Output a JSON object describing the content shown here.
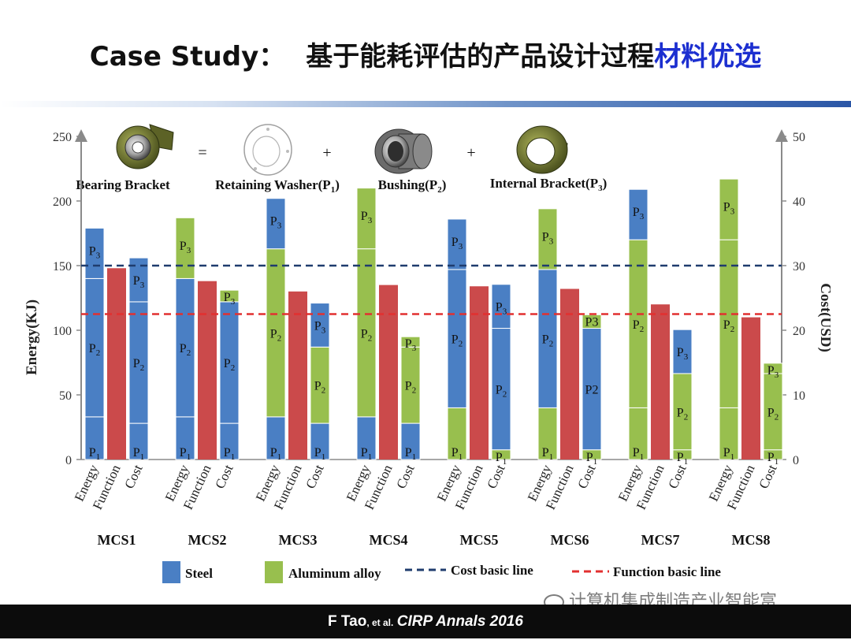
{
  "slide": {
    "title_prefix": "Case Study：",
    "title_main": "基于能耗评估的产品设计过程",
    "title_highlight": "材料优选",
    "footer_author": "F Tao",
    "footer_etal": ", et al.",
    "footer_journal": "CIRP Annals 2016",
    "watermark": "计算机集成制造产业智能富"
  },
  "colors": {
    "steel": "#4a7fc4",
    "aluminum": "#98bf4e",
    "function": "#cb4a4b",
    "cost_line": "#1f3c6e",
    "function_line": "#e23030",
    "title_highlight": "#1c2fd0"
  },
  "chart_data": {
    "type": "bar",
    "subtype": "stacked",
    "categories": [
      "MCS1",
      "MCS2",
      "MCS3",
      "MCS4",
      "MCS5",
      "MCS6",
      "MCS7",
      "MCS8"
    ],
    "bar_labels": [
      "Energy",
      "Function",
      "Cost"
    ],
    "y_left": {
      "label": "Energy(KJ)",
      "range": [
        0,
        250
      ],
      "ticks": [
        0,
        50,
        100,
        150,
        200,
        250
      ]
    },
    "y_right": {
      "label": "Cost(USD)",
      "range": [
        0,
        50
      ],
      "ticks": [
        0,
        10,
        20,
        30,
        40,
        50
      ]
    },
    "cost_basic_line": 30,
    "function_basic_line": 22.5,
    "legend": {
      "steel": "Steel",
      "aluminum": "Aluminum  alloy",
      "cost_line": "Cost  basic line",
      "function_line": "Function  basic line"
    },
    "part_labels": {
      "P1": [
        "P",
        "1"
      ],
      "P2": [
        "P",
        "2"
      ],
      "P3": [
        "P",
        "3"
      ],
      "P2_plain": "P2",
      "P3_plain": "P3"
    },
    "diagram": {
      "bearing": "Bearing Bracket",
      "eq": "=",
      "washer": "Retaining Washer(P",
      "washer_sub": "1",
      "plus1": "+",
      "bushing": "Bushing(P",
      "bushing_sub": "2",
      "plus2": "+",
      "internal": "Internal  Bracket(P",
      "internal_sub": "3",
      "close": ")"
    },
    "groups": [
      {
        "name": "MCS1",
        "energy": [
          {
            "part": "P1",
            "value": 33,
            "material": "steel"
          },
          {
            "part": "P2",
            "value": 107,
            "material": "steel"
          },
          {
            "part": "P3",
            "value": 39,
            "material": "steel"
          }
        ],
        "function": 148,
        "cost": [
          {
            "part": "P1",
            "value": 5.6,
            "material": "steel"
          },
          {
            "part": "P2",
            "value": 18.8,
            "material": "steel"
          },
          {
            "part": "P3",
            "value": 6.8,
            "material": "steel"
          }
        ]
      },
      {
        "name": "MCS2",
        "energy": [
          {
            "part": "P1",
            "value": 33,
            "material": "steel"
          },
          {
            "part": "P2",
            "value": 107,
            "material": "steel"
          },
          {
            "part": "P3",
            "value": 47,
            "material": "aluminum"
          }
        ],
        "function": 138,
        "cost": [
          {
            "part": "P1",
            "value": 5.6,
            "material": "steel"
          },
          {
            "part": "P2",
            "value": 18.8,
            "material": "steel"
          },
          {
            "part": "P3",
            "value": 1.8,
            "material": "aluminum"
          }
        ]
      },
      {
        "name": "MCS3",
        "energy": [
          {
            "part": "P1",
            "value": 33,
            "material": "steel"
          },
          {
            "part": "P2",
            "value": 130,
            "material": "aluminum"
          },
          {
            "part": "P3",
            "value": 39,
            "material": "steel"
          }
        ],
        "function": 130,
        "cost": [
          {
            "part": "P1",
            "value": 5.6,
            "material": "steel"
          },
          {
            "part": "P2",
            "value": 11.8,
            "material": "aluminum"
          },
          {
            "part": "P3",
            "value": 6.8,
            "material": "steel"
          }
        ]
      },
      {
        "name": "MCS4",
        "energy": [
          {
            "part": "P1",
            "value": 33,
            "material": "steel"
          },
          {
            "part": "P2",
            "value": 130,
            "material": "aluminum"
          },
          {
            "part": "P3",
            "value": 47,
            "material": "aluminum"
          }
        ],
        "function": 135,
        "cost": [
          {
            "part": "P1",
            "value": 5.6,
            "material": "steel"
          },
          {
            "part": "P2",
            "value": 11.8,
            "material": "aluminum"
          },
          {
            "part": "P3",
            "value": 1.6,
            "material": "aluminum"
          }
        ]
      },
      {
        "name": "MCS5",
        "energy": [
          {
            "part": "P1",
            "value": 40,
            "material": "aluminum"
          },
          {
            "part": "P2",
            "value": 107,
            "material": "steel"
          },
          {
            "part": "P3",
            "value": 39,
            "material": "steel"
          }
        ],
        "function": 134,
        "cost": [
          {
            "part": "P1",
            "value": 1.5,
            "material": "aluminum"
          },
          {
            "part": "P2",
            "value": 18.8,
            "material": "steel"
          },
          {
            "part": "P3",
            "value": 6.8,
            "material": "steel"
          }
        ]
      },
      {
        "name": "MCS6",
        "energy": [
          {
            "part": "P1",
            "value": 40,
            "material": "aluminum"
          },
          {
            "part": "P2",
            "value": 107,
            "material": "steel"
          },
          {
            "part": "P3",
            "value": 47,
            "material": "aluminum"
          }
        ],
        "function": 132,
        "cost": [
          {
            "part": "P1",
            "value": 1.5,
            "material": "aluminum"
          },
          {
            "part": "P2",
            "value": 18.8,
            "material": "steel"
          },
          {
            "part": "P3",
            "value": 2.1,
            "material": "aluminum"
          }
        ]
      },
      {
        "name": "MCS7",
        "energy": [
          {
            "part": "P1",
            "value": 40,
            "material": "aluminum"
          },
          {
            "part": "P2",
            "value": 130,
            "material": "aluminum"
          },
          {
            "part": "P3",
            "value": 39,
            "material": "steel"
          }
        ],
        "function": 120,
        "cost": [
          {
            "part": "P1",
            "value": 1.5,
            "material": "aluminum"
          },
          {
            "part": "P2",
            "value": 11.8,
            "material": "aluminum"
          },
          {
            "part": "P3",
            "value": 6.8,
            "material": "steel"
          }
        ]
      },
      {
        "name": "MCS8",
        "energy": [
          {
            "part": "P1",
            "value": 40,
            "material": "aluminum"
          },
          {
            "part": "P2",
            "value": 130,
            "material": "aluminum"
          },
          {
            "part": "P3",
            "value": 47,
            "material": "aluminum"
          }
        ],
        "function": 110,
        "cost": [
          {
            "part": "P1",
            "value": 1.5,
            "material": "aluminum"
          },
          {
            "part": "P2",
            "value": 11.8,
            "material": "aluminum"
          },
          {
            "part": "P3",
            "value": 1.6,
            "material": "aluminum"
          }
        ]
      }
    ]
  }
}
